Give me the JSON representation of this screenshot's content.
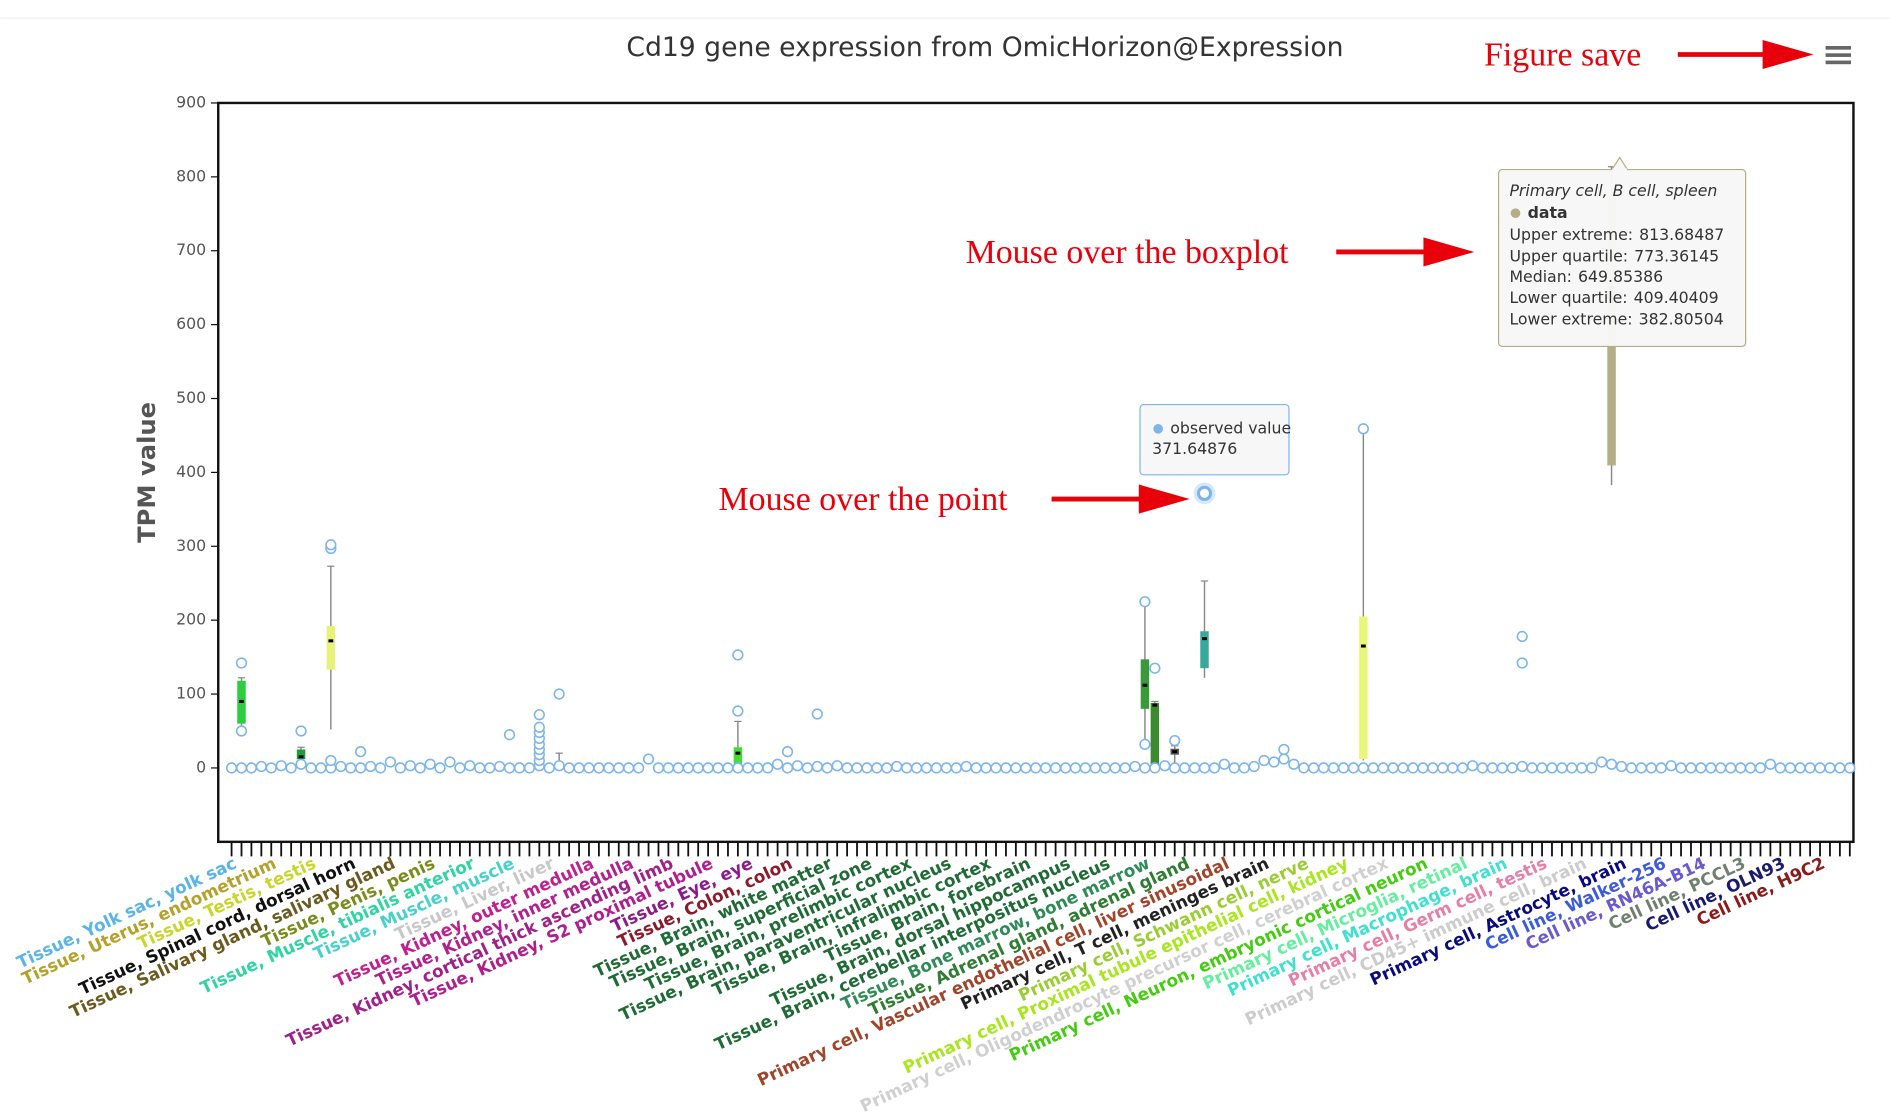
{
  "chart_data": {
    "type": "box",
    "title": "Cd19 gene expression from OmicHorizon@Expression",
    "y_label": "TPM value",
    "ylim": [
      -100,
      900
    ],
    "yticks": [
      0,
      100,
      200,
      300,
      400,
      500,
      600,
      700,
      800,
      900
    ],
    "categories": [
      "Tissue, Yolk sac, yolk sac",
      null,
      null,
      null,
      "Tissue, Uterus, endometrium",
      null,
      null,
      null,
      "Tissue, Testis, testis",
      null,
      null,
      null,
      "Tissue, Spinal cord, dorsal horn",
      null,
      null,
      null,
      "Tissue, Salivary gland, salivary gland",
      null,
      null,
      null,
      "Tissue, Penis, penis",
      null,
      null,
      null,
      "Tissue, Muscle, tibialis anterior",
      null,
      null,
      null,
      "Tissue, Muscle, muscle",
      null,
      null,
      null,
      "Tissue, Liver, liver",
      null,
      null,
      null,
      "Tissue, Kidney, outer medulla",
      null,
      null,
      null,
      "Tissue, Kidney, inner medulla",
      null,
      null,
      null,
      "Tissue, Kidney, cortical thick ascending limb",
      null,
      null,
      null,
      "Tissue, Kidney, S2 proximal tubule",
      null,
      null,
      null,
      "Tissue, Eye, eye",
      null,
      null,
      null,
      "Tissue, Colon, colon",
      null,
      null,
      null,
      "Tissue, Brain, white matter",
      null,
      null,
      null,
      "Tissue, Brain, superficial zone",
      null,
      null,
      null,
      "Tissue, Brain, prelimbic cortex",
      null,
      null,
      null,
      "Tissue, Brain, paraventricular nucleus",
      null,
      null,
      null,
      "Tissue, Brain, infralimbic cortex",
      null,
      null,
      null,
      "Tissue, Brain, forebrain",
      null,
      null,
      null,
      "Tissue, Brain, dorsal hippocampus",
      null,
      null,
      null,
      "Tissue, Brain, cerebellar interpositus nucleus",
      null,
      null,
      null,
      "Tissue, Bone marrow, bone marrow",
      null,
      null,
      null,
      "Tissue, Adrenal gland, adrenal gland",
      null,
      null,
      null,
      "Primary cell, Vascular endothelial cell, liver sinusoidal",
      null,
      null,
      null,
      "Primary cell, T cell, meninges brain",
      null,
      null,
      null,
      "Primary cell, Schwann cell, nerve",
      null,
      null,
      null,
      "Primary cell, Proximal tubule epithelial cell, kidney",
      null,
      null,
      null,
      "Primary cell, Oligodendrocyte precursor cell, cerebral cortex",
      null,
      null,
      null,
      "Primary cell, Neuron, embryonic cortical neuron",
      null,
      null,
      null,
      "Primary cell, Microglia, retinal",
      null,
      null,
      null,
      "Primary cell, Macrophage, brain",
      null,
      null,
      null,
      "Primary cell, Germ cell, testis",
      null,
      null,
      null,
      "Primary cell, CD45+ immune cell, brain",
      null,
      null,
      null,
      "Primary cell, Astrocyte, brain",
      null,
      null,
      null,
      "Cell line, Walker-256",
      null,
      null,
      null,
      "Cell line, RN46A-B14",
      null,
      null,
      null,
      "Cell line, PCCL3",
      null,
      null,
      null,
      "Cell line, OLN93",
      null,
      null,
      null,
      "Cell line, H9C2",
      null,
      null,
      null
    ],
    "label_colors": [
      "#5ab4e5",
      null,
      null,
      null,
      "#b5a12a",
      null,
      null,
      null,
      "#c8d62c",
      null,
      null,
      null,
      "#111111",
      null,
      null,
      null,
      "#6b5a1e",
      null,
      null,
      null,
      "#7a8c1c",
      null,
      null,
      null,
      "#2fd5a0",
      null,
      null,
      null,
      "#48d1cc",
      null,
      null,
      null,
      "#c8c8c8",
      null,
      null,
      null,
      "#c0208f",
      null,
      null,
      null,
      "#b0208f",
      null,
      null,
      null,
      "#a0208a",
      null,
      null,
      null,
      "#b01e8e",
      null,
      null,
      null,
      "#8b1a8b",
      null,
      null,
      null,
      "#8b1a2a",
      null,
      null,
      null,
      "#1f6b35",
      null,
      null,
      null,
      "#1f6b35",
      null,
      null,
      null,
      "#1f6b35",
      null,
      null,
      null,
      "#1f6b35",
      null,
      null,
      null,
      "#1f6b35",
      null,
      null,
      null,
      "#1f6b35",
      null,
      null,
      null,
      "#1f6b35",
      null,
      null,
      null,
      "#1f6b35",
      null,
      null,
      null,
      "#2e8b57",
      null,
      null,
      null,
      "#2e7d32",
      null,
      null,
      null,
      "#a0442a",
      null,
      null,
      null,
      "#222222",
      null,
      null,
      null,
      "#9acd32",
      null,
      null,
      null,
      "#a8e61d",
      null,
      null,
      null,
      "#d0d0d0",
      null,
      null,
      null,
      "#44cc11",
      null,
      null,
      null,
      "#66eea0",
      null,
      null,
      null,
      "#40e0d0",
      null,
      null,
      null,
      "#e57fa8",
      null,
      null,
      null,
      "#cccccc",
      null,
      null,
      null,
      "#0a0a80",
      null,
      null,
      null,
      "#3b5bdb",
      null,
      null,
      null,
      "#6a5acd",
      null,
      null,
      null,
      "#708070",
      null,
      null,
      null,
      "#191970",
      null,
      null,
      null,
      "#8b1a1a",
      null,
      null,
      null
    ],
    "point_series": {
      "name": "observed value",
      "color": "#7cb5ec"
    },
    "values": [
      0,
      0,
      0,
      2,
      0,
      3,
      0,
      5,
      0,
      0,
      0,
      2,
      0,
      0,
      2,
      0,
      8,
      0,
      3,
      0,
      5,
      0,
      8,
      0,
      3,
      0,
      0,
      2,
      0,
      0,
      0,
      3,
      0,
      3,
      0,
      0,
      0,
      0,
      0,
      0,
      0,
      0,
      12,
      0,
      0,
      0,
      0,
      0,
      0,
      0,
      0,
      0,
      0,
      0,
      0,
      5,
      0,
      3,
      0,
      2,
      0,
      3,
      0,
      0,
      0,
      0,
      0,
      2,
      0,
      0,
      0,
      0,
      0,
      0,
      2,
      0,
      0,
      0,
      0,
      0,
      0,
      0,
      0,
      0,
      0,
      0,
      0,
      0,
      0,
      0,
      0,
      2,
      0,
      0,
      3,
      0,
      0,
      0,
      0,
      0,
      5,
      0,
      0,
      2,
      10,
      8,
      12,
      5,
      0,
      0,
      0,
      0,
      0,
      0,
      0,
      0,
      0,
      0,
      0,
      0,
      0,
      0,
      0,
      0,
      0,
      3,
      0,
      0,
      0,
      0,
      2,
      0,
      0,
      0,
      0,
      0,
      0,
      0,
      8,
      5,
      2,
      0,
      0,
      0,
      0,
      3,
      0,
      0,
      0,
      0,
      0,
      0,
      0,
      0,
      0,
      5,
      0,
      0,
      0,
      0,
      0,
      0,
      0,
      0
    ],
    "extra_points": {
      "x": [
        1,
        1,
        7,
        10,
        10,
        10,
        13,
        28,
        31,
        31,
        31,
        31,
        31,
        31,
        31,
        31,
        33,
        51,
        51,
        56,
        59,
        92,
        92,
        93,
        95,
        98,
        106,
        114,
        130,
        130
      ],
      "y": [
        142,
        50,
        50,
        297,
        302,
        10,
        22,
        45,
        10,
        18,
        25,
        32,
        40,
        48,
        55,
        72,
        100,
        77,
        153,
        22,
        73,
        225,
        32,
        135,
        37,
        371.64876,
        25,
        459,
        178,
        142
      ]
    },
    "box_series": {
      "name": "data"
    },
    "boxes": [
      {
        "x": 1,
        "low": 55,
        "q1": 60,
        "median": 90,
        "q3": 118,
        "high": 122,
        "color": "#2ecc40"
      },
      {
        "x": 7,
        "low": 5,
        "q1": 12,
        "median": 15,
        "q3": 25,
        "high": 28,
        "color": "#1e9e3a"
      },
      {
        "x": 10,
        "low": 52,
        "q1": 133,
        "median": 172,
        "q3": 192,
        "high": 273,
        "color": "#e8f27a"
      },
      {
        "x": 33,
        "low": 0,
        "q1": 3,
        "median": 4,
        "q3": 5,
        "high": 20,
        "color": "#b0c4de"
      },
      {
        "x": 51,
        "low": 3,
        "q1": 5,
        "median": 20,
        "q3": 28,
        "high": 63,
        "color": "#44dd33"
      },
      {
        "x": 92,
        "low": 32,
        "q1": 80,
        "median": 112,
        "q3": 147,
        "high": 225,
        "color": "#3a9a3a"
      },
      {
        "x": 93,
        "low": 0,
        "q1": 2,
        "median": 85,
        "q3": 88,
        "high": 90,
        "color": "#3d8b2f"
      },
      {
        "x": 95,
        "low": 5,
        "q1": 18,
        "median": 22,
        "q3": 26,
        "high": 30,
        "color": "#555555"
      },
      {
        "x": 98,
        "low": 122,
        "q1": 135,
        "median": 175,
        "q3": 185,
        "high": 253,
        "color": "#3aa89a"
      },
      {
        "x": 106,
        "low": 5,
        "q1": 8,
        "median": 10,
        "q3": 12,
        "high": 15,
        "color": "#333333"
      },
      {
        "x": 114,
        "low": 10,
        "q1": 12,
        "median": 165,
        "q3": 205,
        "high": 459,
        "color": "#e8f77a"
      },
      {
        "x": 139,
        "low": 382.80504,
        "q1": 409.40409,
        "median": 649.85386,
        "q3": 773.36145,
        "high": 813.68487,
        "color": "#b5ad85"
      }
    ],
    "tooltip": {
      "box_title": "Primary cell, B cell, spleen",
      "labels": [
        "Upper extreme:",
        "Upper quartile:",
        "Median:",
        "Lower quartile:",
        "Lower extreme:"
      ]
    },
    "annotations": [
      "Figure save",
      "Mouse over the boxplot",
      "Mouse over the point"
    ]
  }
}
